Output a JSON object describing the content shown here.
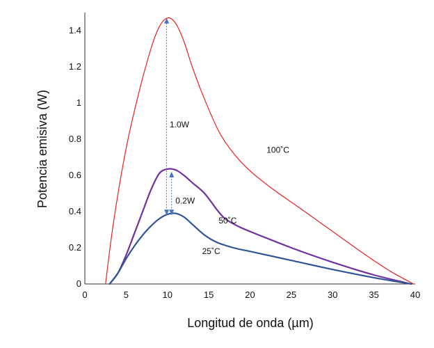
{
  "chart_data": {
    "type": "line",
    "xlabel": "Longitud de onda (µm)",
    "ylabel": "Potencia emisiva (W)",
    "xlim": [
      0,
      40
    ],
    "ylim": [
      0,
      1.5
    ],
    "x_ticks": [
      "0",
      "5",
      "10",
      "15",
      "20",
      "25",
      "30",
      "35",
      "40"
    ],
    "y_ticks": [
      "0",
      "0.2",
      "0.4",
      "0.6",
      "0.8",
      "1",
      "1.2",
      "1.4"
    ],
    "y_tick_values": [
      0,
      0.2,
      0.4,
      0.6,
      0.8,
      1.0,
      1.2,
      1.4
    ],
    "grid": false,
    "series": [
      {
        "name": "100˚C",
        "color": "#e8231e",
        "x": [
          2.5,
          3.5,
          5.0,
          6.5,
          8.0,
          9.0,
          10.0,
          11.0,
          12.0,
          13.0,
          14.5,
          16.5,
          19.0,
          22.0,
          26.0,
          30.0,
          34.0,
          37.0,
          39.8
        ],
        "y": [
          0.0,
          0.35,
          0.75,
          1.05,
          1.3,
          1.42,
          1.47,
          1.44,
          1.34,
          1.2,
          1.02,
          0.82,
          0.67,
          0.55,
          0.42,
          0.29,
          0.16,
          0.07,
          0.0
        ]
      },
      {
        "name": "50˚C",
        "color": "#7030a0",
        "x": [
          3.0,
          4.0,
          5.0,
          6.0,
          7.0,
          8.0,
          9.0,
          10.0,
          11.0,
          12.0,
          13.0,
          14.5,
          16.0,
          17.0,
          18.5,
          20.0,
          25.0,
          30.0,
          35.0,
          39.5
        ],
        "y": [
          0.0,
          0.06,
          0.16,
          0.28,
          0.4,
          0.52,
          0.61,
          0.635,
          0.63,
          0.6,
          0.56,
          0.5,
          0.41,
          0.36,
          0.32,
          0.29,
          0.2,
          0.12,
          0.05,
          0.0
        ]
      },
      {
        "name": "25˚C",
        "color": "#2f5597",
        "x": [
          3.0,
          4.0,
          5.0,
          6.0,
          7.0,
          8.0,
          9.0,
          10.0,
          11.0,
          12.0,
          13.0,
          14.5,
          16.0,
          18.0,
          20.0,
          25.0,
          30.0,
          35.0,
          39.5
        ],
        "y": [
          0.0,
          0.06,
          0.14,
          0.21,
          0.27,
          0.32,
          0.36,
          0.385,
          0.39,
          0.37,
          0.33,
          0.27,
          0.23,
          0.2,
          0.18,
          0.13,
          0.08,
          0.035,
          0.0
        ]
      }
    ],
    "annotations": [
      {
        "text": "1.0W",
        "x": 10.1,
        "y": 0.88
      },
      {
        "text": "0.2W",
        "x": 10.8,
        "y": 0.46
      }
    ],
    "arrows": [
      {
        "x": 9.9,
        "y_from": 0.38,
        "y_to": 1.47,
        "color": "#4472c4"
      },
      {
        "x": 10.5,
        "y_from": 0.38,
        "y_to": 0.62,
        "color": "#4472c4"
      }
    ]
  }
}
